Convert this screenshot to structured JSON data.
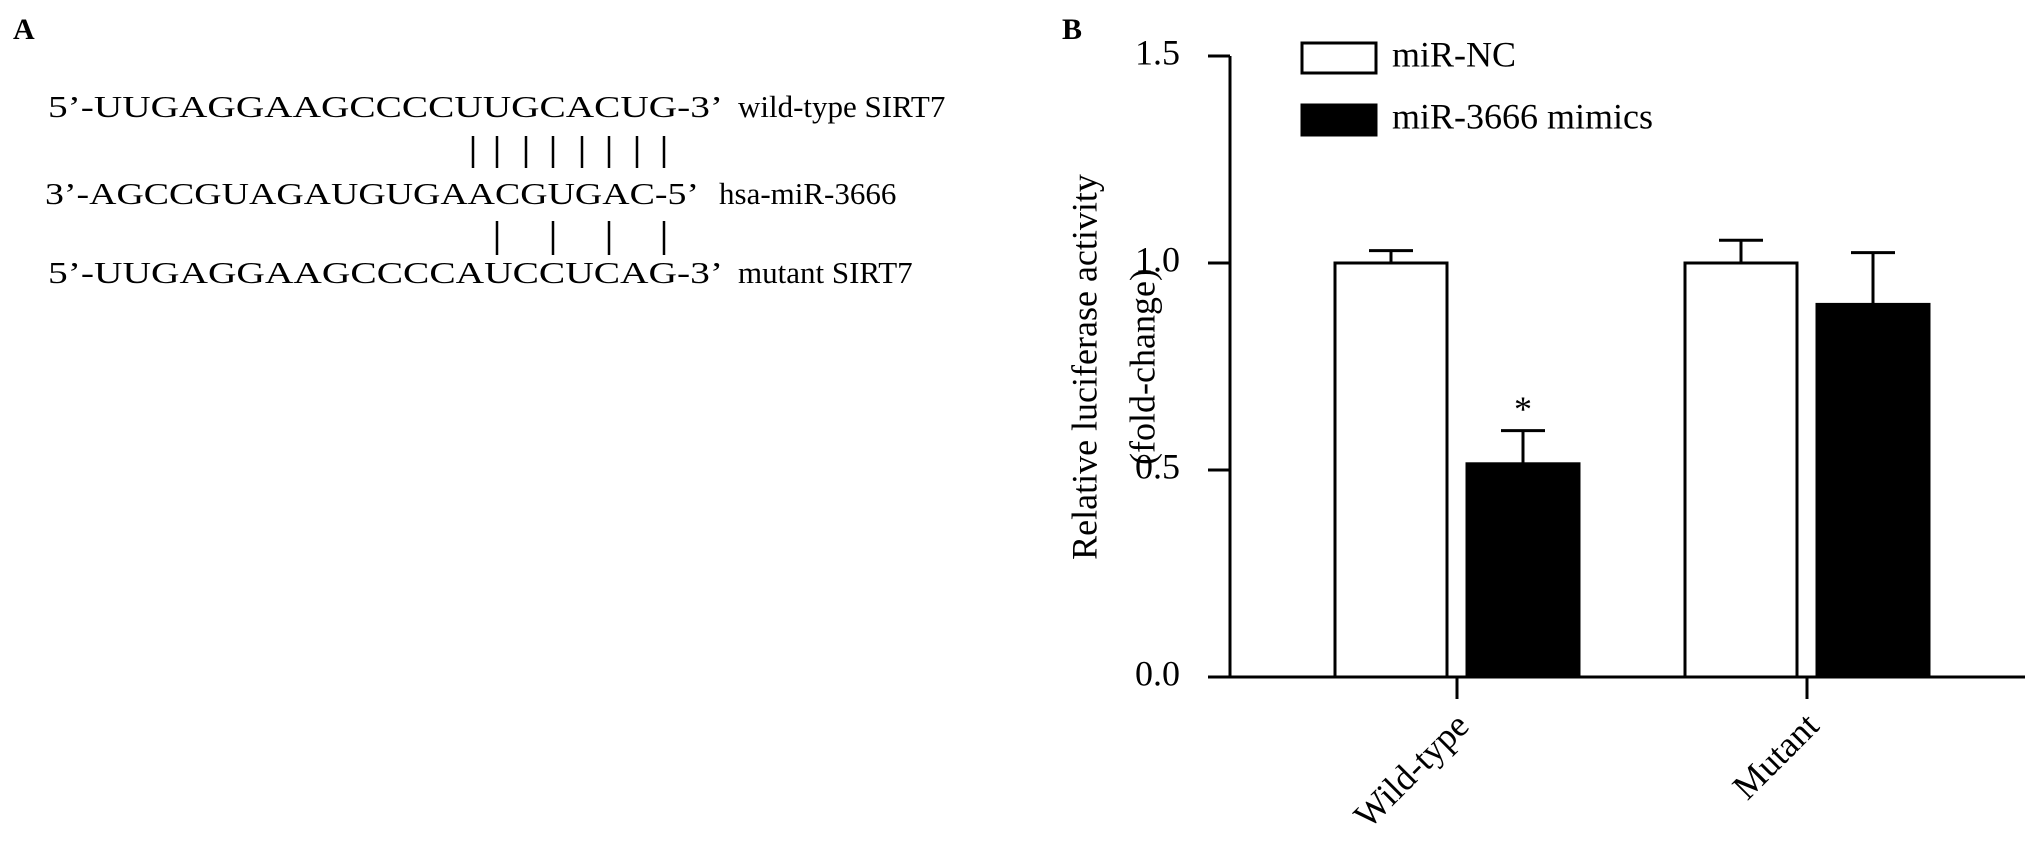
{
  "panel_labels": [
    "A",
    "B"
  ],
  "alignment": [
    {
      "sequence": "5’-UUGAGGAAGCCCCUUGCACUG-3’",
      "name": "wild-type SIRT7"
    },
    {
      "sequence": "3’-AGCCGUAGAUGUGAACGUGAC-5’",
      "name": "hsa-miR-3666"
    },
    {
      "sequence": "5’-UUGAGGAAGCCCCAUCCUCAG-3’",
      "name": "mutant SIRT7"
    }
  ],
  "chart_data": {
    "type": "bar",
    "ylabel": [
      "Relative luciferase activity",
      "(fold-change)"
    ],
    "categories": [
      "Wild-type",
      "Mutant"
    ],
    "series": [
      {
        "name": "miR-NC",
        "color": "#ffffff",
        "values": [
          1.0,
          1.0
        ],
        "errors": [
          0.03,
          0.055
        ],
        "annotations": [
          null,
          null
        ]
      },
      {
        "name": "miR-3666 mimics",
        "color": "#000000",
        "values": [
          0.515,
          0.9
        ],
        "errors": [
          0.08,
          0.125
        ],
        "annotations": [
          "*",
          null
        ]
      }
    ],
    "ylim": [
      0,
      1.5
    ],
    "yticks": [
      {
        "value": 0,
        "label": "0.0"
      },
      0.5,
      {
        "value": 1,
        "label": "1.0"
      },
      1.5
    ],
    "legend": "top-left"
  }
}
